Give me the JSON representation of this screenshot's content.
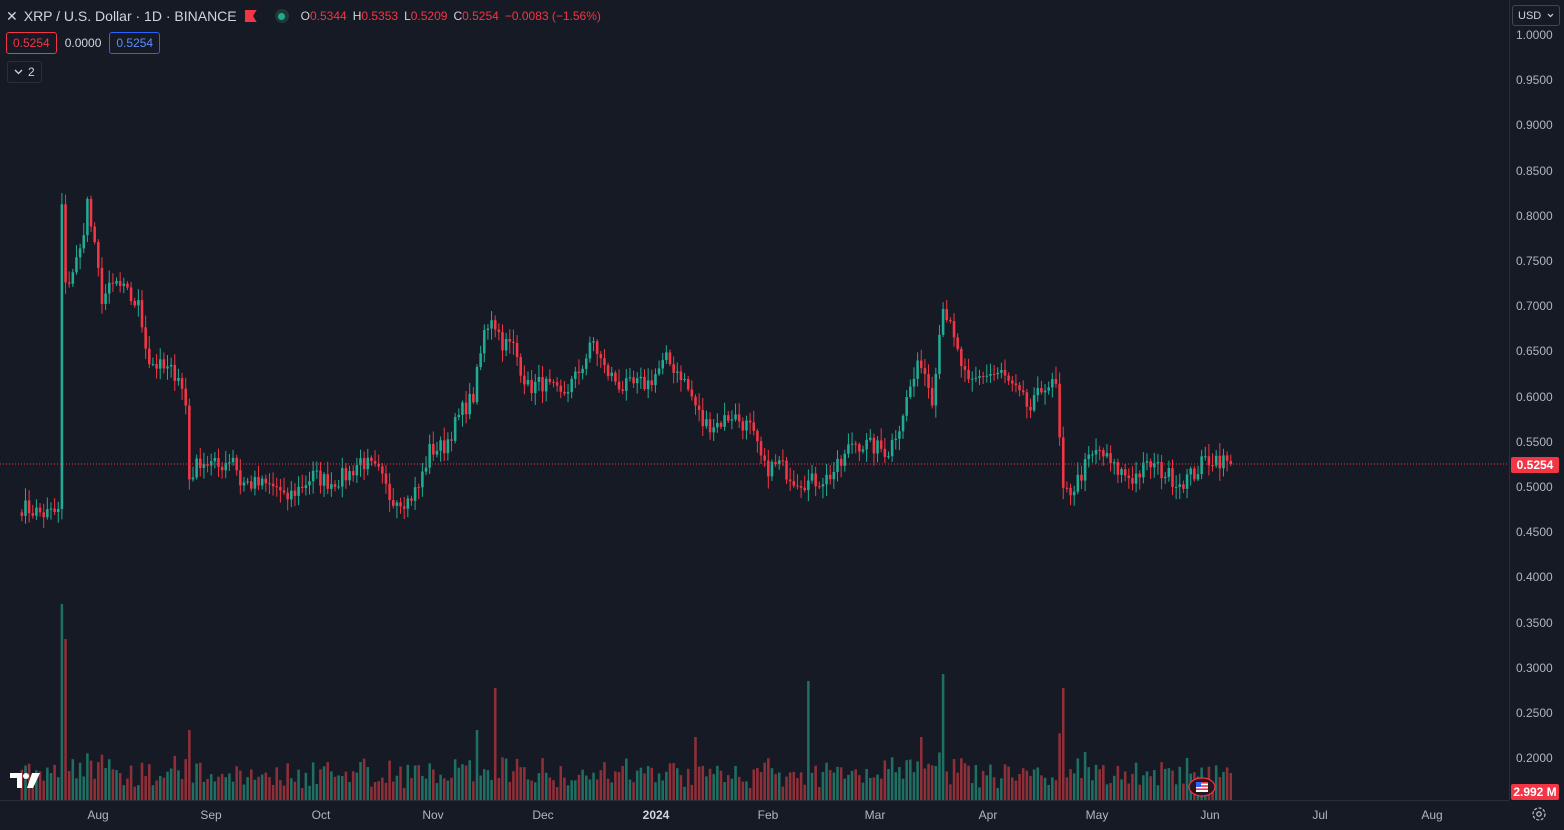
{
  "header": {
    "title": "XRP / U.S. Dollar · 1D · BINANCE",
    "ohlc": {
      "o_label": "O",
      "o_value": "0.5344",
      "h_label": "H",
      "h_value": "0.5353",
      "l_label": "L",
      "l_value": "0.5209",
      "c_label": "C",
      "c_value": "0.5254",
      "change": "−0.0083 (−1.56%)"
    },
    "sell_price": "0.5254",
    "spread": "0.0000",
    "buy_price": "0.5254",
    "indicators_count": "2"
  },
  "currency_selector": "USD",
  "price_axis": {
    "ticks": [
      "1.0000",
      "0.9500",
      "0.9000",
      "0.8500",
      "0.8000",
      "0.7500",
      "0.7000",
      "0.6500",
      "0.6000",
      "0.5500",
      "0.5000",
      "0.4500",
      "0.4000",
      "0.3500",
      "0.3000",
      "0.2500",
      "0.2000"
    ],
    "tick_values": [
      1.0,
      0.95,
      0.9,
      0.85,
      0.8,
      0.75,
      0.7,
      0.65,
      0.6,
      0.55,
      0.5,
      0.45,
      0.4,
      0.35,
      0.3,
      0.25,
      0.2
    ],
    "last_price_label": "0.5254",
    "volume_label": "2.992 M"
  },
  "time_axis": {
    "labels": [
      "Aug",
      "Sep",
      "Oct",
      "Nov",
      "Dec",
      "2024",
      "Feb",
      "Mar",
      "Apr",
      "May",
      "Jun",
      "Jul",
      "Aug"
    ]
  },
  "colors": {
    "up": "#22ab94",
    "down": "#f23645",
    "background": "#161a25",
    "axis_text": "#b2b5be"
  },
  "chart_data": {
    "type": "candlestick",
    "last_price": 0.5254,
    "ylim": [
      0.18,
      1.02
    ],
    "start_date": "2023-07-02",
    "end_date": "2024-05-29",
    "anchors": [
      [
        "2023-07-02",
        0.478
      ],
      [
        "2023-07-08",
        0.47
      ],
      [
        "2023-07-12",
        0.472
      ],
      [
        "2023-07-13",
        0.81
      ],
      [
        "2023-07-14",
        0.72
      ],
      [
        "2023-07-18",
        0.76
      ],
      [
        "2023-07-20",
        0.815
      ],
      [
        "2023-07-24",
        0.71
      ],
      [
        "2023-07-28",
        0.725
      ],
      [
        "2023-08-03",
        0.7
      ],
      [
        "2023-08-06",
        0.64
      ],
      [
        "2023-08-10",
        0.63
      ],
      [
        "2023-08-14",
        0.625
      ],
      [
        "2023-08-16",
        0.59
      ],
      [
        "2023-08-17",
        0.51
      ],
      [
        "2023-08-20",
        0.53
      ],
      [
        "2023-08-25",
        0.522
      ],
      [
        "2023-08-29",
        0.535
      ],
      [
        "2023-08-31",
        0.505
      ],
      [
        "2023-09-10",
        0.5
      ],
      [
        "2023-09-12",
        0.485
      ],
      [
        "2023-09-20",
        0.512
      ],
      [
        "2023-09-25",
        0.505
      ],
      [
        "2023-09-30",
        0.515
      ],
      [
        "2023-10-03",
        0.53
      ],
      [
        "2023-10-08",
        0.515
      ],
      [
        "2023-10-11",
        0.49
      ],
      [
        "2023-10-16",
        0.485
      ],
      [
        "2023-10-19",
        0.5
      ],
      [
        "2023-10-22",
        0.54
      ],
      [
        "2023-10-26",
        0.545
      ],
      [
        "2023-10-31",
        0.585
      ],
      [
        "2023-11-03",
        0.6
      ],
      [
        "2023-11-06",
        0.67
      ],
      [
        "2023-11-08",
        0.69
      ],
      [
        "2023-11-11",
        0.66
      ],
      [
        "2023-11-14",
        0.655
      ],
      [
        "2023-11-18",
        0.61
      ],
      [
        "2023-11-22",
        0.615
      ],
      [
        "2023-11-27",
        0.6
      ],
      [
        "2023-12-01",
        0.62
      ],
      [
        "2023-12-06",
        0.66
      ],
      [
        "2023-12-09",
        0.63
      ],
      [
        "2023-12-14",
        0.61
      ],
      [
        "2023-12-21",
        0.615
      ],
      [
        "2023-12-26",
        0.64
      ],
      [
        "2023-12-30",
        0.625
      ],
      [
        "2024-01-03",
        0.59
      ],
      [
        "2024-01-05",
        0.57
      ],
      [
        "2024-01-09",
        0.57
      ],
      [
        "2024-01-13",
        0.58
      ],
      [
        "2024-01-18",
        0.565
      ],
      [
        "2024-01-22",
        0.52
      ],
      [
        "2024-01-26",
        0.525
      ],
      [
        "2024-01-30",
        0.51
      ],
      [
        "2024-02-03",
        0.505
      ],
      [
        "2024-02-08",
        0.51
      ],
      [
        "2024-02-12",
        0.525
      ],
      [
        "2024-02-15",
        0.55
      ],
      [
        "2024-02-20",
        0.545
      ],
      [
        "2024-02-25",
        0.54
      ],
      [
        "2024-02-28",
        0.57
      ],
      [
        "2024-03-02",
        0.61
      ],
      [
        "2024-03-05",
        0.64
      ],
      [
        "2024-03-08",
        0.6
      ],
      [
        "2024-03-11",
        0.705
      ],
      [
        "2024-03-14",
        0.66
      ],
      [
        "2024-03-18",
        0.61
      ],
      [
        "2024-03-22",
        0.625
      ],
      [
        "2024-03-27",
        0.625
      ],
      [
        "2024-03-31",
        0.605
      ],
      [
        "2024-04-04",
        0.585
      ],
      [
        "2024-04-08",
        0.615
      ],
      [
        "2024-04-11",
        0.61
      ],
      [
        "2024-04-13",
        0.49
      ],
      [
        "2024-04-16",
        0.5
      ],
      [
        "2024-04-20",
        0.53
      ],
      [
        "2024-04-23",
        0.54
      ],
      [
        "2024-04-27",
        0.52
      ],
      [
        "2024-05-02",
        0.51
      ],
      [
        "2024-05-07",
        0.525
      ],
      [
        "2024-05-11",
        0.515
      ],
      [
        "2024-05-15",
        0.505
      ],
      [
        "2024-05-19",
        0.515
      ],
      [
        "2024-05-22",
        0.53
      ],
      [
        "2024-05-25",
        0.532
      ],
      [
        "2024-05-29",
        0.5254
      ]
    ],
    "volume_spikes": [
      [
        "2023-07-13",
        2.8
      ],
      [
        "2023-07-14",
        2.3
      ],
      [
        "2023-08-17",
        1.0
      ],
      [
        "2023-11-04",
        1.0
      ],
      [
        "2023-11-09",
        1.6
      ],
      [
        "2024-01-03",
        0.9
      ],
      [
        "2024-02-03",
        1.7
      ],
      [
        "2024-03-11",
        1.8
      ],
      [
        "2024-04-13",
        1.6
      ],
      [
        "2024-03-05",
        0.9
      ]
    ]
  }
}
